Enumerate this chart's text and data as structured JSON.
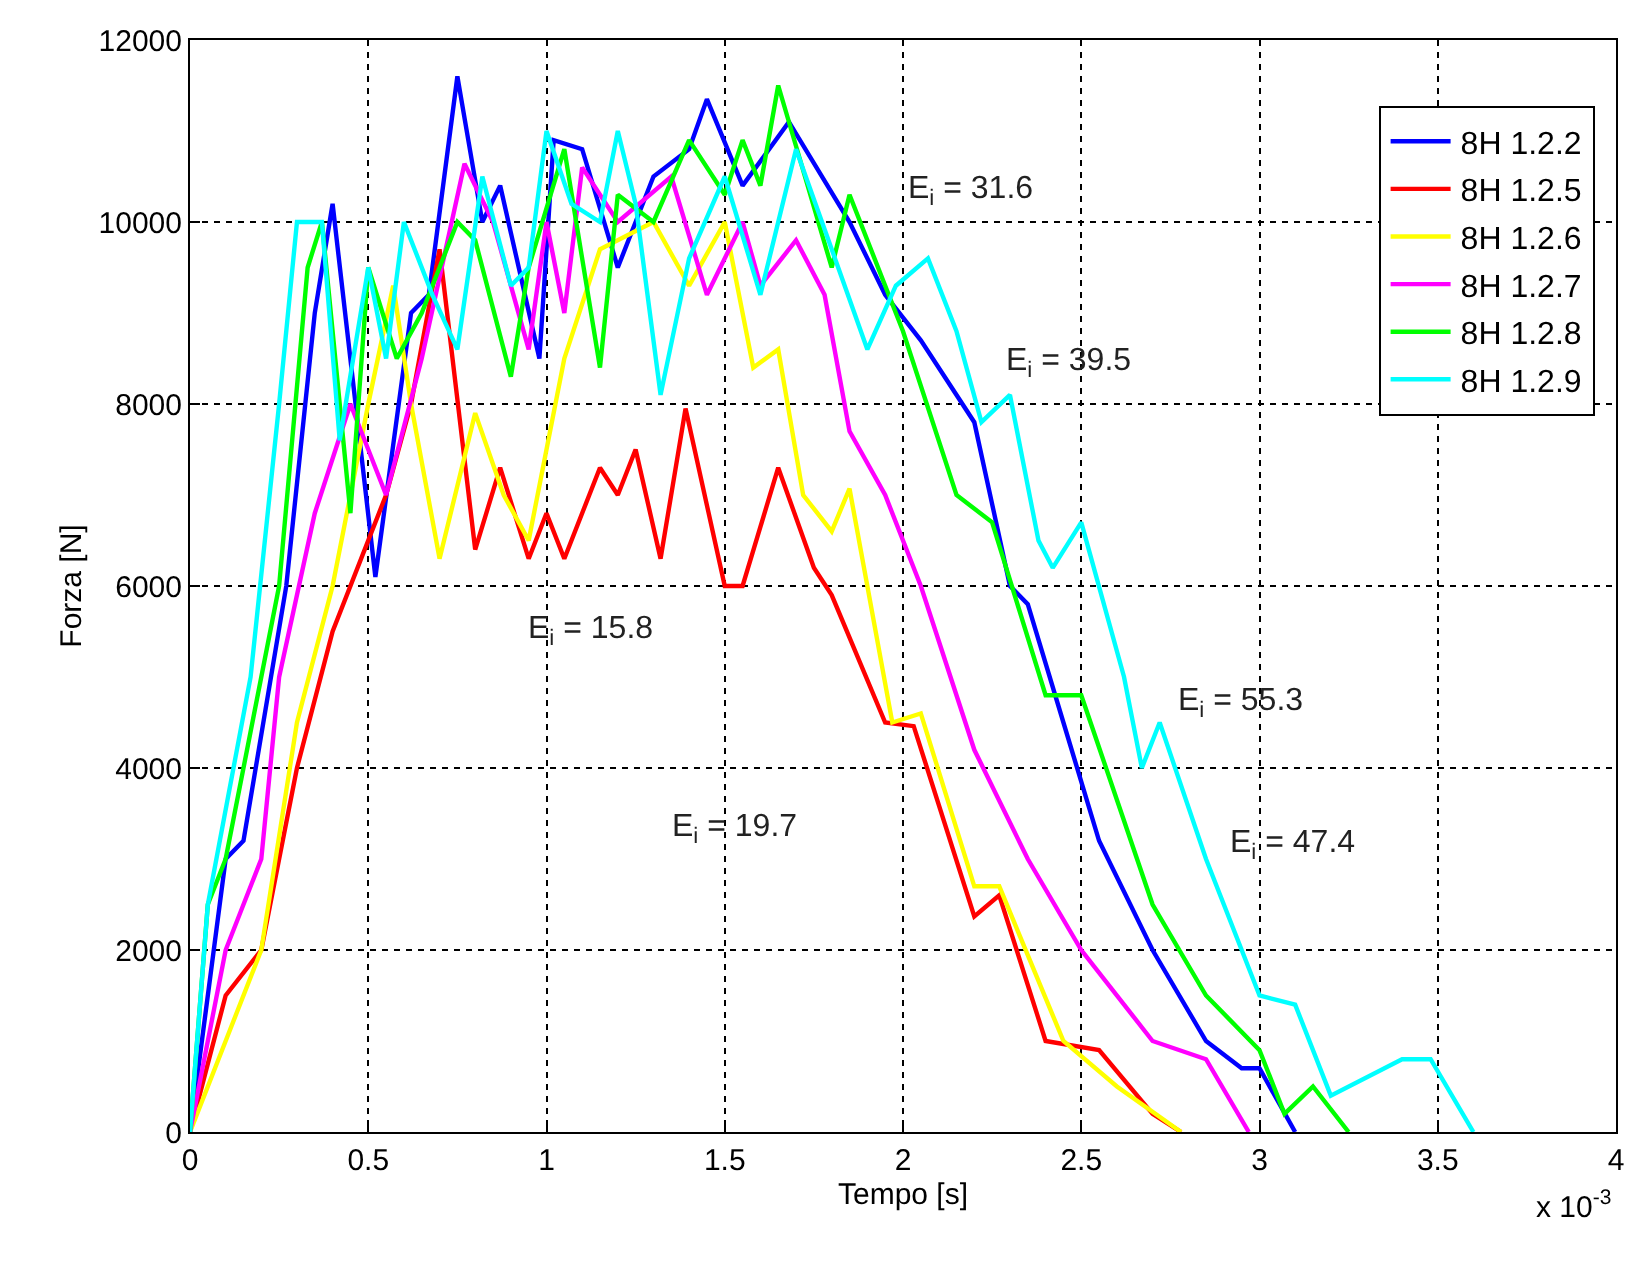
{
  "chart_data": {
    "type": "line",
    "xlabel": "Tempo [s]",
    "ylabel": "Forza [N]",
    "xlim": [
      0,
      4
    ],
    "xticks": [
      0,
      0.5,
      1,
      1.5,
      2,
      2.5,
      3,
      3.5,
      4
    ],
    "ylim": [
      0,
      12000
    ],
    "yticks": [
      0,
      2000,
      4000,
      6000,
      8000,
      10000,
      12000
    ],
    "grid": true,
    "legend": "top right",
    "line_style": "solid",
    "marker": "none",
    "annotations": [
      "x 10$^{-3}$",
      "E$_{i}$ = 31.6",
      "E$_{i}$ = 39.5",
      "E$_{i}$ = 15.8",
      "E$_{i}$ = 19.7",
      "E$_{i}$ = 55.3",
      "E$_{i}$ = 47.4"
    ],
    "series": [
      {
        "name": "8H 1.2.2",
        "color": "#0000ff",
        "x": [
          0,
          0.1,
          0.15,
          0.27,
          0.35,
          0.4,
          0.52,
          0.62,
          0.67,
          0.75,
          0.82,
          0.87,
          0.98,
          1.02,
          1.1,
          1.2,
          1.3,
          1.4,
          1.45,
          1.55,
          1.68,
          1.85,
          1.95,
          2.05,
          2.2,
          2.3,
          2.35,
          2.45,
          2.55,
          2.7,
          2.85,
          2.95,
          3.0,
          3.1
        ],
        "values": [
          0,
          3000,
          3200,
          6000,
          9000,
          10200,
          6100,
          9000,
          9200,
          11600,
          10000,
          10400,
          8500,
          10900,
          10800,
          9500,
          10500,
          10800,
          11350,
          10400,
          11100,
          10000,
          9200,
          8700,
          7800,
          6000,
          5800,
          4500,
          3200,
          2000,
          1000,
          700,
          700,
          0
        ]
      },
      {
        "name": "8H 1.2.5",
        "color": "#ff0000",
        "x": [
          0,
          0.1,
          0.2,
          0.25,
          0.3,
          0.4,
          0.55,
          0.62,
          0.7,
          0.8,
          0.87,
          0.95,
          1.0,
          1.05,
          1.15,
          1.2,
          1.25,
          1.32,
          1.39,
          1.5,
          1.55,
          1.65,
          1.75,
          1.8,
          1.95,
          2.03,
          2.2,
          2.27,
          2.4,
          2.55,
          2.7,
          2.78
        ],
        "values": [
          0,
          1500,
          2000,
          3000,
          4000,
          5500,
          7000,
          8000,
          9700,
          6400,
          7300,
          6300,
          6800,
          6300,
          7300,
          7000,
          7500,
          6300,
          7950,
          6000,
          6000,
          7300,
          6200,
          5900,
          4500,
          4460,
          2370,
          2600,
          1000,
          900,
          200,
          0
        ]
      },
      {
        "name": "8H 1.2.6",
        "color": "#ffff00",
        "x": [
          0,
          0.1,
          0.2,
          0.3,
          0.4,
          0.5,
          0.57,
          0.62,
          0.7,
          0.8,
          0.88,
          0.95,
          1.05,
          1.15,
          1.3,
          1.4,
          1.5,
          1.58,
          1.65,
          1.72,
          1.8,
          1.85,
          1.97,
          2.05,
          2.2,
          2.27,
          2.45,
          2.6,
          2.78
        ],
        "values": [
          0,
          1000,
          2000,
          4500,
          6000,
          8000,
          9300,
          8000,
          6300,
          7900,
          7000,
          6500,
          8500,
          9700,
          10000,
          9300,
          10000,
          8400,
          8600,
          7000,
          6600,
          7070,
          4500,
          4600,
          2700,
          2700,
          1000,
          500,
          0
        ]
      },
      {
        "name": "8H 1.2.7",
        "color": "#ff00ff",
        "x": [
          0,
          0.1,
          0.2,
          0.25,
          0.35,
          0.45,
          0.55,
          0.65,
          0.77,
          0.85,
          0.95,
          1.0,
          1.05,
          1.1,
          1.2,
          1.35,
          1.45,
          1.55,
          1.6,
          1.7,
          1.78,
          1.85,
          1.95,
          2.05,
          2.2,
          2.35,
          2.5,
          2.7,
          2.85,
          2.97
        ],
        "values": [
          0,
          2000,
          3000,
          5000,
          6800,
          8000,
          7000,
          8500,
          10640,
          10000,
          8600,
          10000,
          9000,
          10600,
          10000,
          10500,
          9200,
          10000,
          9300,
          9800,
          9200,
          7700,
          7000,
          6000,
          4200,
          3000,
          2000,
          1000,
          800,
          0
        ]
      },
      {
        "name": "8H 1.2.8",
        "color": "#00ff00",
        "x": [
          0,
          0.05,
          0.1,
          0.25,
          0.33,
          0.37,
          0.45,
          0.5,
          0.58,
          0.65,
          0.75,
          0.8,
          0.9,
          0.95,
          1.05,
          1.15,
          1.2,
          1.3,
          1.4,
          1.5,
          1.55,
          1.6,
          1.65,
          1.8,
          1.85,
          2.0,
          2.15,
          2.25,
          2.4,
          2.5,
          2.7,
          2.85,
          3.0,
          3.07,
          3.15,
          3.25
        ],
        "values": [
          0,
          2500,
          3000,
          6000,
          9500,
          10000,
          6800,
          9500,
          8500,
          9000,
          10000,
          9800,
          8300,
          9500,
          10800,
          8400,
          10300,
          10000,
          10900,
          10300,
          10900,
          10400,
          11500,
          9500,
          10300,
          8800,
          7000,
          6700,
          4800,
          4800,
          2500,
          1500,
          900,
          200,
          500,
          0
        ]
      },
      {
        "name": "8H 1.2.9",
        "color": "#00ffff",
        "x": [
          0,
          0.05,
          0.17,
          0.25,
          0.3,
          0.37,
          0.42,
          0.5,
          0.55,
          0.6,
          0.68,
          0.75,
          0.82,
          0.9,
          0.95,
          1.0,
          1.07,
          1.15,
          1.2,
          1.25,
          1.32,
          1.4,
          1.5,
          1.6,
          1.7,
          1.8,
          1.9,
          1.98,
          2.07,
          2.15,
          2.22,
          2.3,
          2.38,
          2.42,
          2.5,
          2.62,
          2.67,
          2.72,
          2.85,
          2.9,
          3.0,
          3.1,
          3.2,
          3.4,
          3.48,
          3.6
        ],
        "values": [
          0,
          2500,
          5000,
          8000,
          10000,
          10000,
          7600,
          9500,
          8500,
          10000,
          9200,
          8600,
          10500,
          9300,
          9500,
          11000,
          10200,
          10000,
          11000,
          10200,
          8100,
          9600,
          10500,
          9200,
          10800,
          9700,
          8600,
          9300,
          9600,
          8800,
          7800,
          8100,
          6500,
          6200,
          6700,
          5000,
          4000,
          4500,
          3000,
          2500,
          1500,
          1400,
          400,
          800,
          800,
          0
        ]
      }
    ]
  }
}
